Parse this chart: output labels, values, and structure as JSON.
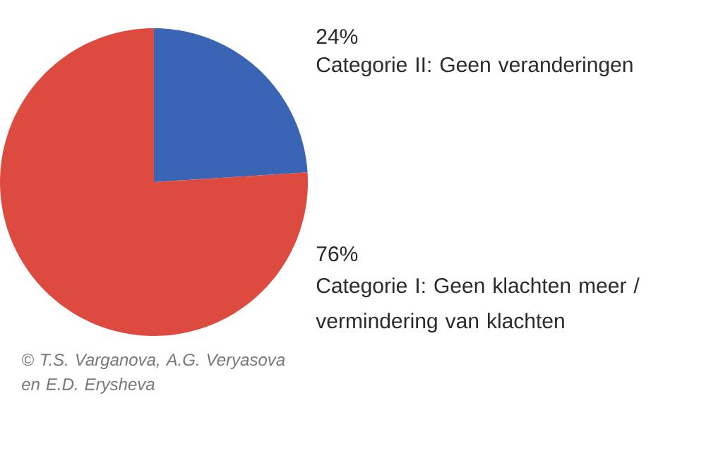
{
  "chart_data": {
    "type": "pie",
    "categories": [
      "Categorie II: Geen veranderingen",
      "Categorie I: Geen klachten meer / vermindering van klachten"
    ],
    "values": [
      24,
      76
    ],
    "colors": [
      "#3a64b4",
      "#dd4a40"
    ],
    "value_labels": [
      "24%",
      "76%"
    ],
    "annotations": [
      "© T.S. Varganova, A.G. Veryasova en E.D. Erysheva"
    ]
  }
}
